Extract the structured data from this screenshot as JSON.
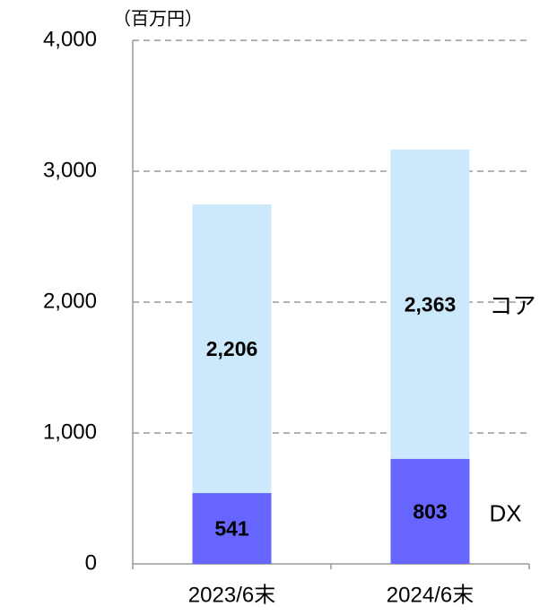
{
  "chart_data": {
    "type": "bar",
    "stacked": true,
    "unit_label": "（百万円）",
    "categories": [
      "2023/6末",
      "2024/6末"
    ],
    "series": [
      {
        "name": "DX",
        "color": "#6666ff",
        "values": [
          541,
          803
        ],
        "value_labels": [
          "541",
          "803"
        ]
      },
      {
        "name": "コア",
        "color": "#cce9fb",
        "values": [
          2206,
          2363
        ],
        "value_labels": [
          "2,206",
          "2,363"
        ]
      }
    ],
    "ylim": [
      0,
      4000
    ],
    "yticks": [
      0,
      {
        "value": 1000,
        "label": "1,000"
      },
      {
        "value": 2000,
        "label": "2,000"
      },
      {
        "value": 3000,
        "label": "3,000"
      },
      {
        "value": 4000,
        "label": "4,000"
      }
    ],
    "grid": true
  }
}
